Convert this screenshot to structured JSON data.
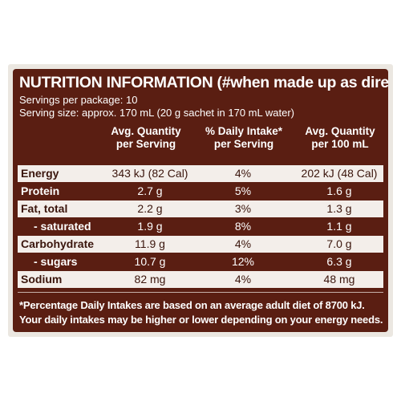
{
  "heading": "NUTRITION INFORMATION (#when made up as directed)",
  "servings_per_package": "Servings per package: 10",
  "serving_size": "Serving size: approx. 170 mL (20 g sachet in 170 mL water)",
  "columns": [
    {
      "line1": "Avg. Quantity",
      "line2": "per Serving"
    },
    {
      "line1": "% Daily Intake*",
      "line2": "per Serving"
    },
    {
      "line1": "Avg. Quantity",
      "line2": "per 100 mL"
    }
  ],
  "rows": [
    {
      "label": "Energy",
      "per_serving": "343 kJ (82 Cal)",
      "daily_intake": "4%",
      "per_100ml": "202 kJ (48 Cal)"
    },
    {
      "label": "Protein",
      "per_serving": "2.7 g",
      "daily_intake": "5%",
      "per_100ml": "1.6 g"
    },
    {
      "label": "Fat, total",
      "per_serving": "2.2 g",
      "daily_intake": "3%",
      "per_100ml": "1.3 g"
    },
    {
      "label": "- saturated",
      "per_serving": "1.9 g",
      "daily_intake": "8%",
      "per_100ml": "1.1 g"
    },
    {
      "label": "Carbohydrate",
      "per_serving": "11.9 g",
      "daily_intake": "4%",
      "per_100ml": "7.0 g"
    },
    {
      "label": "- sugars",
      "per_serving": "10.7 g",
      "daily_intake": "12%",
      "per_100ml": "6.3 g"
    },
    {
      "label": "Sodium",
      "per_serving": "82 mg",
      "daily_intake": "4%",
      "per_100ml": "48 mg"
    }
  ],
  "footnote_line1": "*Percentage Daily Intakes are based on an average adult diet of 8700 kJ.",
  "footnote_line2": "Your daily intakes may be higher or lower depending on your energy needs.",
  "colors": {
    "panel": "#5a1e12",
    "band": "#f3eeea",
    "text_light": "#ffffff"
  }
}
